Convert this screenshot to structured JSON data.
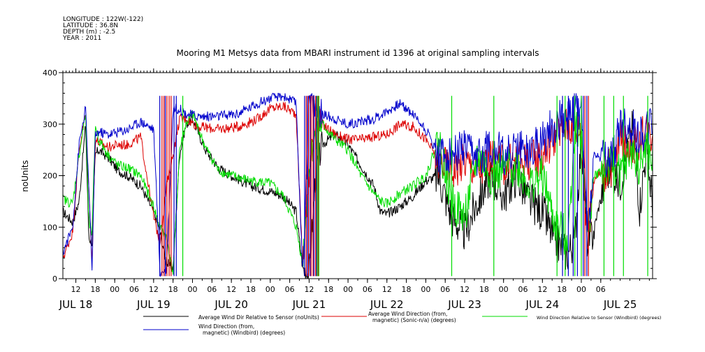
{
  "meta": {
    "longitude": "LONGITUDE : 122W(-122)",
    "latitude": "LATITUDE : 36.8N",
    "depth": "DEPTH (m) : -2.5",
    "year": "YEAR : 2011"
  },
  "chart_data": {
    "type": "line",
    "title": "Mooring M1 Metsys data from MBARI instrument id 1396 at original sampling intervals",
    "xlabel": "",
    "ylabel": "noUnits",
    "ylim": [
      0,
      400
    ],
    "xlim_hours": [
      8,
      190
    ],
    "yticks": [
      0,
      100,
      200,
      300,
      400
    ],
    "hour_ticks": [
      "12",
      "18",
      "00",
      "06",
      "12",
      "18",
      "00",
      "06",
      "12",
      "18",
      "00",
      "06",
      "12",
      "18",
      "00",
      "06",
      "12",
      "18",
      "00",
      "06",
      "12",
      "18",
      "00",
      "06",
      "12",
      "18",
      "00",
      "06"
    ],
    "day_labels": [
      "JUL 18",
      "JUL 19",
      "JUL 20",
      "JUL 21",
      "JUL 22",
      "JUL 23",
      "JUL 24",
      "JUL 25"
    ],
    "grid": false,
    "legend_position": "bottom",
    "series": [
      {
        "name": "Average Wind Dir Relative to Sensor (noUnits)",
        "color": "#000000",
        "points": [
          [
            8,
            130
          ],
          [
            11,
            110
          ],
          [
            13,
            150
          ],
          [
            15,
            300
          ],
          [
            16,
            80
          ],
          [
            17,
            70
          ],
          [
            18,
            240
          ],
          [
            19,
            250
          ],
          [
            22,
            235
          ],
          [
            25,
            210
          ],
          [
            28,
            200
          ],
          [
            32,
            180
          ],
          [
            36,
            130
          ],
          [
            38,
            90
          ],
          [
            40,
            30
          ],
          [
            42,
            20
          ],
          [
            44,
            240
          ],
          [
            46,
            300
          ],
          [
            48,
            310
          ],
          [
            52,
            250
          ],
          [
            56,
            215
          ],
          [
            60,
            200
          ],
          [
            66,
            180
          ],
          [
            72,
            170
          ],
          [
            76,
            160
          ],
          [
            80,
            130
          ],
          [
            82,
            20
          ],
          [
            84,
            10
          ],
          [
            86,
            200
          ],
          [
            88,
            260
          ],
          [
            92,
            280
          ],
          [
            96,
            260
          ],
          [
            100,
            220
          ],
          [
            104,
            180
          ],
          [
            106,
            130
          ],
          [
            108,
            125
          ],
          [
            112,
            140
          ],
          [
            116,
            160
          ],
          [
            120,
            190
          ],
          [
            124,
            200
          ],
          [
            128,
            120
          ],
          [
            132,
            90
          ],
          [
            136,
            150
          ],
          [
            140,
            200
          ],
          [
            144,
            160
          ],
          [
            148,
            200
          ],
          [
            152,
            150
          ],
          [
            156,
            130
          ],
          [
            160,
            70
          ],
          [
            164,
            50
          ],
          [
            166,
            80
          ],
          [
            168,
            270
          ],
          [
            170,
            60
          ],
          [
            172,
            100
          ],
          [
            176,
            210
          ],
          [
            178,
            205
          ],
          [
            180,
            185
          ],
          [
            184,
            300
          ],
          [
            186,
            140
          ],
          [
            188,
            250
          ],
          [
            190,
            150
          ]
        ]
      },
      {
        "name": "Average Wind Direction (from, magnetic) (Sonic-n/a) (degrees)",
        "color": "#dd0000",
        "points": [
          [
            8,
            40
          ],
          [
            11,
            90
          ],
          [
            13,
            250
          ],
          [
            15,
            320
          ],
          [
            17,
            30
          ],
          [
            18,
            270
          ],
          [
            19,
            265
          ],
          [
            22,
            255
          ],
          [
            25,
            260
          ],
          [
            28,
            260
          ],
          [
            32,
            275
          ],
          [
            36,
            120
          ],
          [
            38,
            70
          ],
          [
            40,
            180
          ],
          [
            42,
            240
          ],
          [
            44,
            310
          ],
          [
            46,
            310
          ],
          [
            50,
            295
          ],
          [
            56,
            290
          ],
          [
            62,
            295
          ],
          [
            68,
            310
          ],
          [
            72,
            330
          ],
          [
            76,
            335
          ],
          [
            80,
            320
          ],
          [
            82,
            30
          ],
          [
            84,
            200
          ],
          [
            86,
            310
          ],
          [
            88,
            300
          ],
          [
            92,
            280
          ],
          [
            96,
            270
          ],
          [
            100,
            270
          ],
          [
            104,
            275
          ],
          [
            108,
            280
          ],
          [
            112,
            300
          ],
          [
            116,
            295
          ],
          [
            120,
            270
          ],
          [
            124,
            230
          ],
          [
            128,
            210
          ],
          [
            132,
            230
          ],
          [
            136,
            210
          ],
          [
            140,
            230
          ],
          [
            144,
            220
          ],
          [
            148,
            230
          ],
          [
            152,
            230
          ],
          [
            156,
            240
          ],
          [
            160,
            280
          ],
          [
            164,
            300
          ],
          [
            168,
            290
          ],
          [
            170,
            60
          ],
          [
            172,
            200
          ],
          [
            176,
            210
          ],
          [
            178,
            220
          ],
          [
            180,
            270
          ],
          [
            184,
            260
          ],
          [
            186,
            265
          ],
          [
            188,
            290
          ],
          [
            190,
            280
          ]
        ]
      },
      {
        "name": "Wind Direction Relative to Sensor (Windbird) (degrees)",
        "color": "#00dd00",
        "points": [
          [
            8,
            155
          ],
          [
            11,
            145
          ],
          [
            13,
            240
          ],
          [
            15,
            320
          ],
          [
            16,
            110
          ],
          [
            17,
            85
          ],
          [
            18,
            300
          ],
          [
            19,
            270
          ],
          [
            22,
            240
          ],
          [
            25,
            220
          ],
          [
            28,
            215
          ],
          [
            32,
            200
          ],
          [
            36,
            140
          ],
          [
            38,
            100
          ],
          [
            40,
            80
          ],
          [
            42,
            10
          ],
          [
            44,
            250
          ],
          [
            46,
            300
          ],
          [
            48,
            320
          ],
          [
            52,
            255
          ],
          [
            56,
            210
          ],
          [
            60,
            200
          ],
          [
            66,
            190
          ],
          [
            72,
            185
          ],
          [
            76,
            160
          ],
          [
            80,
            100
          ],
          [
            82,
            30
          ],
          [
            84,
            220
          ],
          [
            86,
            280
          ],
          [
            88,
            300
          ],
          [
            92,
            270
          ],
          [
            96,
            250
          ],
          [
            100,
            200
          ],
          [
            104,
            165
          ],
          [
            106,
            150
          ],
          [
            108,
            145
          ],
          [
            112,
            165
          ],
          [
            116,
            180
          ],
          [
            120,
            200
          ],
          [
            124,
            270
          ],
          [
            128,
            150
          ],
          [
            132,
            120
          ],
          [
            136,
            240
          ],
          [
            140,
            200
          ],
          [
            144,
            210
          ],
          [
            148,
            220
          ],
          [
            152,
            180
          ],
          [
            156,
            200
          ],
          [
            160,
            100
          ],
          [
            164,
            80
          ],
          [
            166,
            300
          ],
          [
            168,
            280
          ],
          [
            170,
            90
          ],
          [
            172,
            200
          ],
          [
            176,
            215
          ],
          [
            178,
            220
          ],
          [
            180,
            200
          ],
          [
            184,
            250
          ],
          [
            186,
            210
          ],
          [
            188,
            260
          ],
          [
            190,
            220
          ]
        ]
      },
      {
        "name": "Wind Direction (from, magnetic) (Windbird) (degrees)",
        "color": "#0000cc",
        "points": [
          [
            8,
            50
          ],
          [
            11,
            100
          ],
          [
            13,
            260
          ],
          [
            15,
            330
          ],
          [
            17,
            20
          ],
          [
            18,
            280
          ],
          [
            19,
            285
          ],
          [
            22,
            280
          ],
          [
            25,
            285
          ],
          [
            28,
            290
          ],
          [
            32,
            305
          ],
          [
            36,
            290
          ],
          [
            38,
            10
          ],
          [
            40,
            20
          ],
          [
            42,
            330
          ],
          [
            44,
            330
          ],
          [
            46,
            320
          ],
          [
            50,
            315
          ],
          [
            56,
            315
          ],
          [
            62,
            320
          ],
          [
            68,
            340
          ],
          [
            72,
            350
          ],
          [
            76,
            355
          ],
          [
            80,
            340
          ],
          [
            82,
            10
          ],
          [
            84,
            350
          ],
          [
            86,
            330
          ],
          [
            88,
            320
          ],
          [
            92,
            310
          ],
          [
            96,
            300
          ],
          [
            100,
            305
          ],
          [
            104,
            310
          ],
          [
            108,
            325
          ],
          [
            112,
            340
          ],
          [
            116,
            320
          ],
          [
            120,
            290
          ],
          [
            124,
            240
          ],
          [
            128,
            240
          ],
          [
            132,
            250
          ],
          [
            136,
            230
          ],
          [
            140,
            260
          ],
          [
            144,
            240
          ],
          [
            148,
            250
          ],
          [
            152,
            250
          ],
          [
            156,
            270
          ],
          [
            160,
            300
          ],
          [
            164,
            320
          ],
          [
            168,
            330
          ],
          [
            170,
            90
          ],
          [
            172,
            240
          ],
          [
            176,
            230
          ],
          [
            178,
            240
          ],
          [
            180,
            300
          ],
          [
            184,
            290
          ],
          [
            186,
            275
          ],
          [
            188,
            290
          ],
          [
            190,
            300
          ]
        ]
      }
    ],
    "spikes": [
      {
        "series": 1,
        "x": [
          38.6,
          39.2,
          40.1,
          40.8,
          41.4,
          83.1,
          83.8,
          84.6,
          85.2,
          86.0,
          86.8,
          169.1,
          170.2
        ]
      },
      {
        "series": 3,
        "x": [
          37.9,
          39.6,
          42.3,
          43.0,
          82.6,
          83.5,
          84.3,
          85.5,
          86.3,
          162.2,
          164.0,
          165.5,
          166.8,
          168.6,
          169.7
        ]
      },
      {
        "series": 2,
        "x": [
          45.0,
          86.5,
          87.0,
          128.0,
          141.0,
          160.5,
          163.0,
          166.0,
          168.0,
          175.0,
          178.0,
          181.0,
          188.5
        ]
      }
    ]
  }
}
